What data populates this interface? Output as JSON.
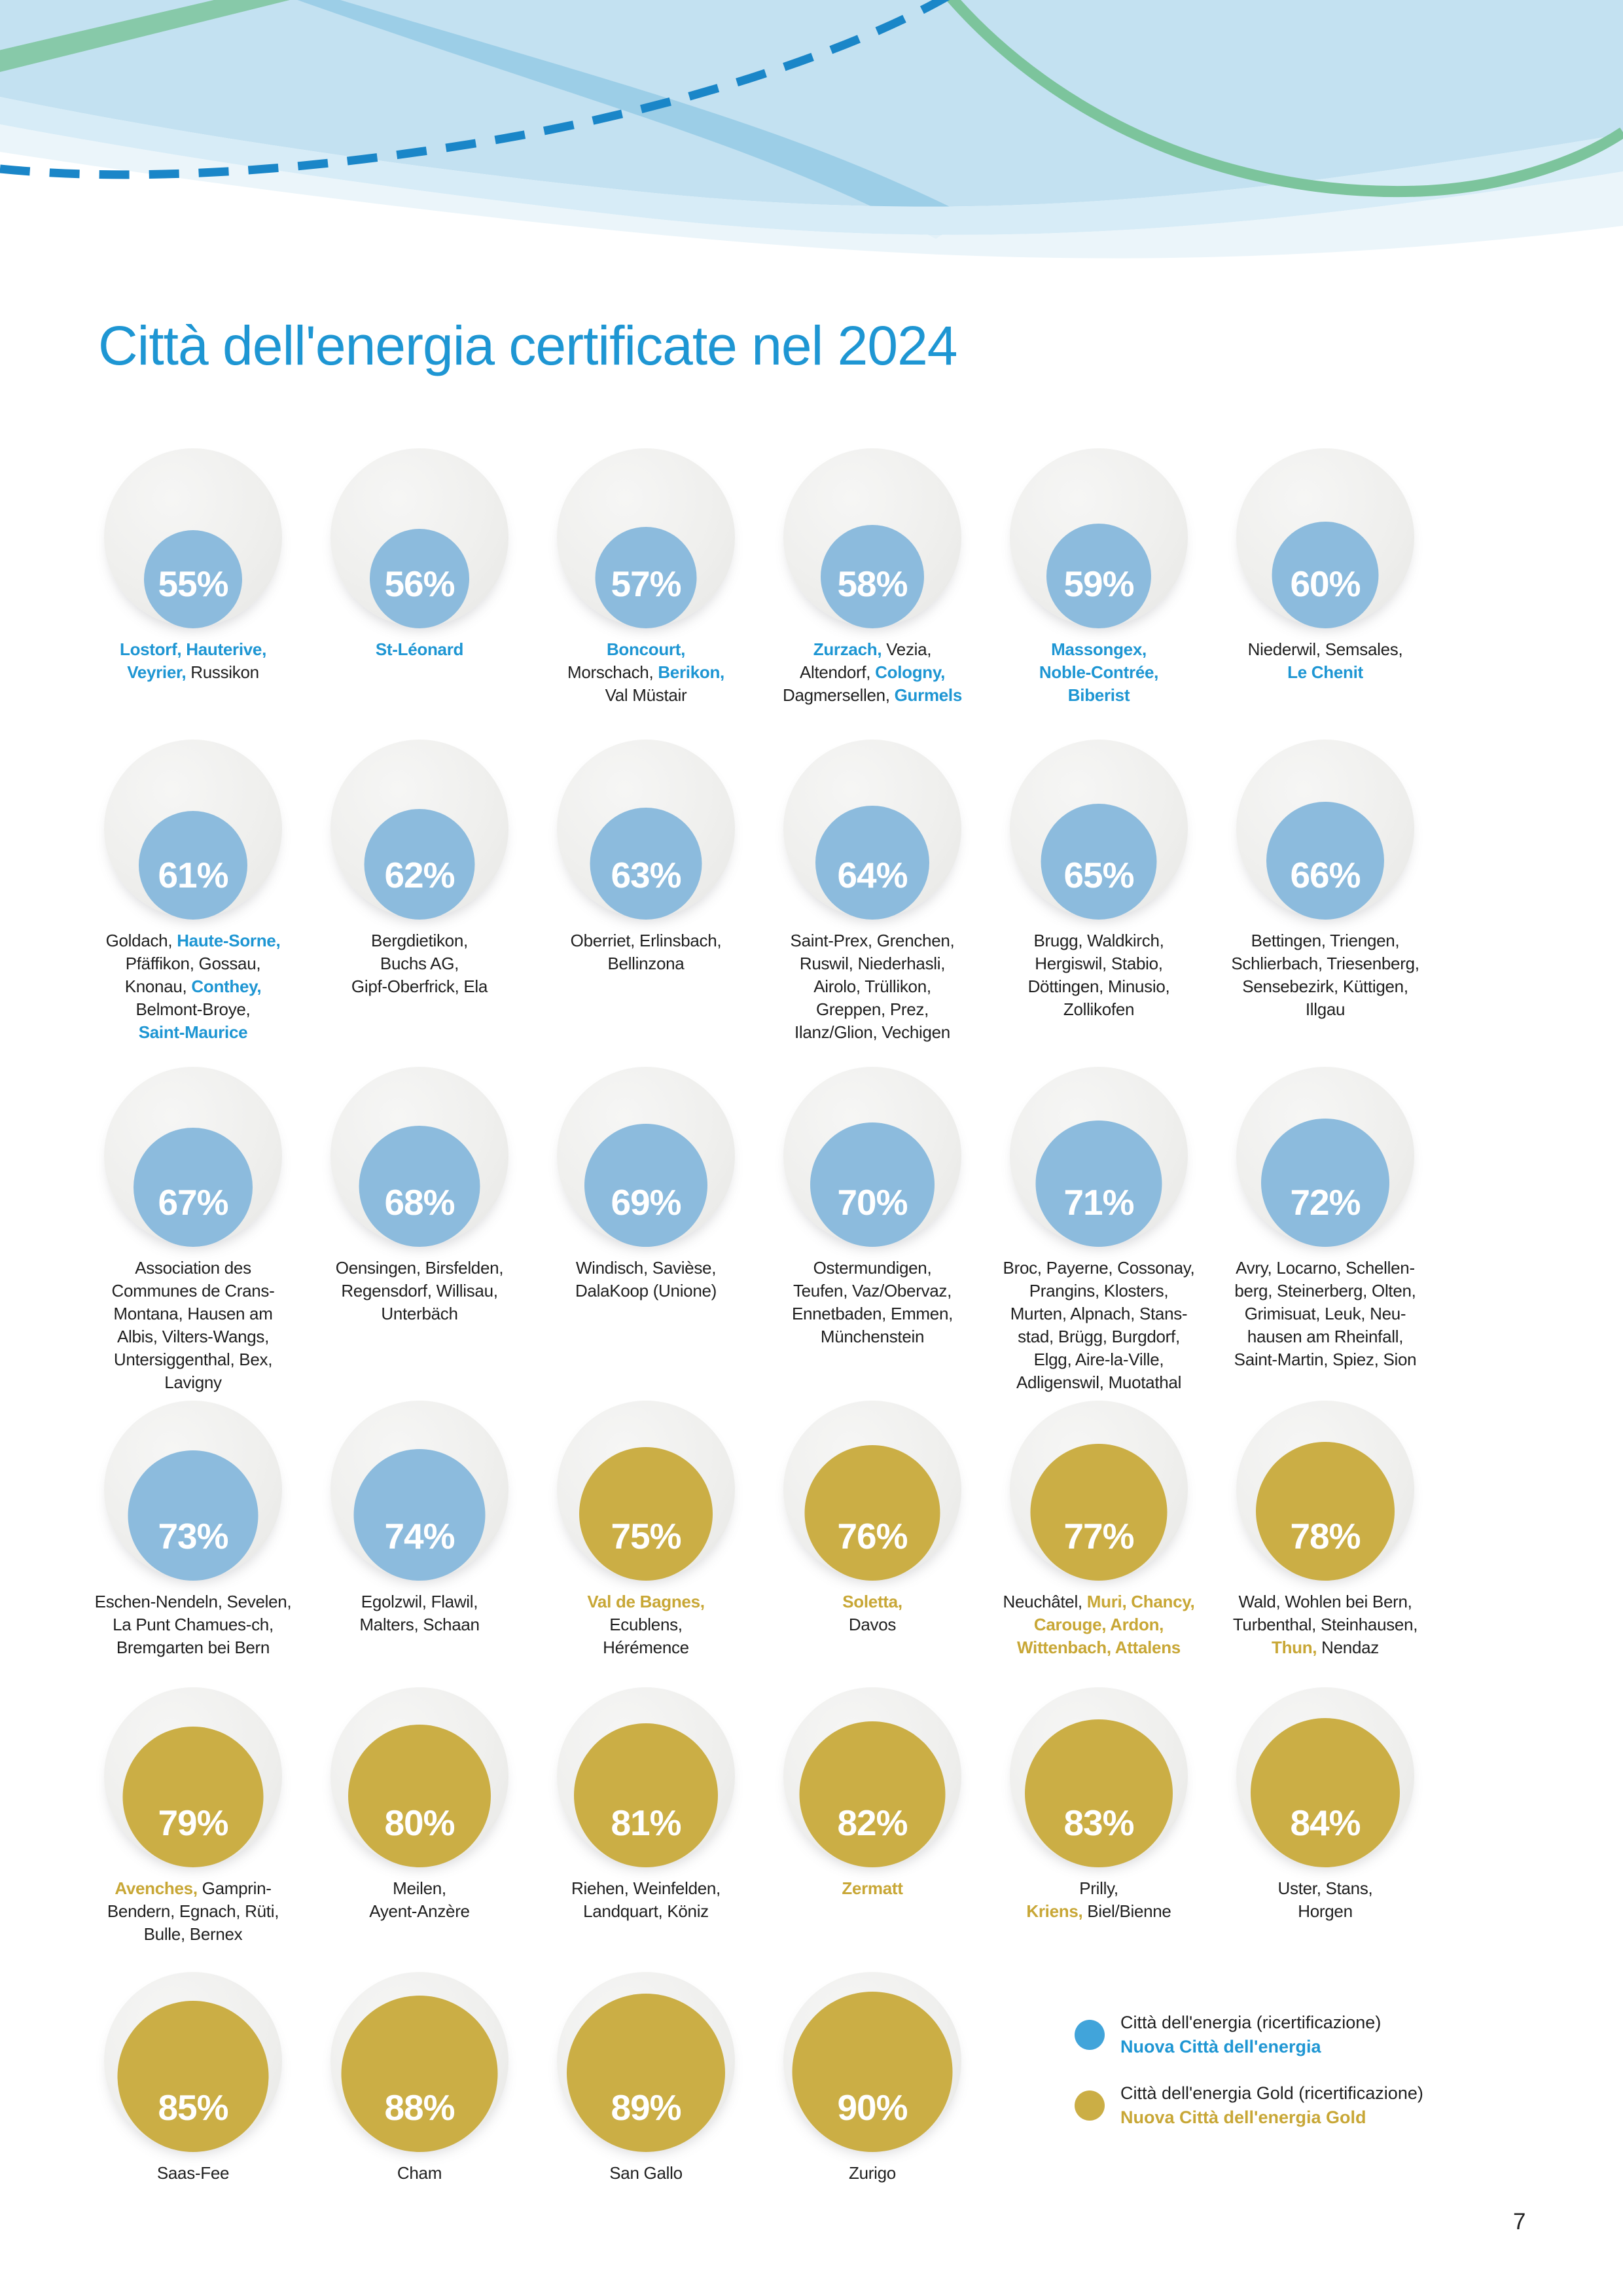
{
  "title": "Città dell'energia certificate nel 2024",
  "page_number": "7",
  "colors": {
    "blue_accent": "#1e96d3",
    "gold_accent": "#c8a736",
    "circle_blue": "#8cbbdd",
    "circle_gold": "#cbae45",
    "legend_blue_dot": "#41a4da",
    "header_light_blue": "#c3e1f1",
    "header_band_blue": "#95cae5",
    "header_green": "#7cc49c",
    "dashed_line_blue": "#1a86c8"
  },
  "legend": {
    "items": [
      {
        "dot": "blue",
        "line1": "Città dell'energia (ricertificazione)",
        "line2": "Nuova Città dell'energia"
      },
      {
        "dot": "gold",
        "line1": "Città dell'energia Gold (ricertificazione)",
        "line2": "Nuova Città dell'energia Gold"
      }
    ]
  },
  "rows": [
    {
      "items": [
        {
          "pct": 55,
          "color": "blue",
          "label": [
            [
              {
                "t": "Lostorf, Hauterive,",
                "c": "b"
              }
            ],
            [
              {
                "t": "Veyrier,",
                "c": "b"
              },
              {
                "t": " Russikon",
                "c": "k"
              }
            ]
          ]
        },
        {
          "pct": 56,
          "color": "blue",
          "label": [
            [
              {
                "t": "St-Léonard",
                "c": "b"
              }
            ]
          ]
        },
        {
          "pct": 57,
          "color": "blue",
          "label": [
            [
              {
                "t": "Boncourt,",
                "c": "b"
              }
            ],
            [
              {
                "t": "Morschach, ",
                "c": "k"
              },
              {
                "t": "Berikon,",
                "c": "b"
              }
            ],
            [
              {
                "t": "Val Müstair",
                "c": "k"
              }
            ]
          ]
        },
        {
          "pct": 58,
          "color": "blue",
          "label": [
            [
              {
                "t": "Zurzach,",
                "c": "b"
              },
              {
                "t": " Vezia,",
                "c": "k"
              }
            ],
            [
              {
                "t": "Altendorf, ",
                "c": "k"
              },
              {
                "t": "Cologny,",
                "c": "b"
              }
            ],
            [
              {
                "t": "Dagmersellen, ",
                "c": "k"
              },
              {
                "t": "Gurmels",
                "c": "b"
              }
            ]
          ]
        },
        {
          "pct": 59,
          "color": "blue",
          "label": [
            [
              {
                "t": "Massongex,",
                "c": "b"
              }
            ],
            [
              {
                "t": "Noble-Contrée,",
                "c": "b"
              }
            ],
            [
              {
                "t": "Biberist",
                "c": "b"
              }
            ]
          ]
        },
        {
          "pct": 60,
          "color": "blue",
          "label": [
            [
              {
                "t": "Niederwil, Semsales,",
                "c": "k"
              }
            ],
            [
              {
                "t": "Le Chenit",
                "c": "b"
              }
            ]
          ]
        }
      ]
    },
    {
      "items": [
        {
          "pct": 61,
          "color": "blue",
          "label": [
            [
              {
                "t": "Goldach, ",
                "c": "k"
              },
              {
                "t": "Haute-Sorne,",
                "c": "b"
              }
            ],
            [
              {
                "t": "Pfäffikon, Gossau,",
                "c": "k"
              }
            ],
            [
              {
                "t": "Knonau, ",
                "c": "k"
              },
              {
                "t": "Conthey,",
                "c": "b"
              }
            ],
            [
              {
                "t": "Belmont-Broye,",
                "c": "k"
              }
            ],
            [
              {
                "t": "Saint-Maurice",
                "c": "b"
              }
            ]
          ]
        },
        {
          "pct": 62,
          "color": "blue",
          "label": [
            [
              {
                "t": "Bergdietikon,",
                "c": "k"
              }
            ],
            [
              {
                "t": "Buchs AG,",
                "c": "k"
              }
            ],
            [
              {
                "t": "Gipf-Oberfrick, Ela",
                "c": "k"
              }
            ]
          ]
        },
        {
          "pct": 63,
          "color": "blue",
          "label": [
            [
              {
                "t": "Oberriet, Erlinsbach,",
                "c": "k"
              }
            ],
            [
              {
                "t": "Bellinzona",
                "c": "k"
              }
            ]
          ]
        },
        {
          "pct": 64,
          "color": "blue",
          "label": [
            [
              {
                "t": "Saint-Prex, Grenchen,",
                "c": "k"
              }
            ],
            [
              {
                "t": "Ruswil, Niederhasli,",
                "c": "k"
              }
            ],
            [
              {
                "t": "Airolo, Trüllikon,",
                "c": "k"
              }
            ],
            [
              {
                "t": "Greppen, Prez,",
                "c": "k"
              }
            ],
            [
              {
                "t": "Ilanz/Glion, Vechigen",
                "c": "k"
              }
            ]
          ]
        },
        {
          "pct": 65,
          "color": "blue",
          "label": [
            [
              {
                "t": "Brugg, Waldkirch,",
                "c": "k"
              }
            ],
            [
              {
                "t": "Hergiswil, Stabio,",
                "c": "k"
              }
            ],
            [
              {
                "t": "Döttingen, Minusio,",
                "c": "k"
              }
            ],
            [
              {
                "t": "Zollikofen",
                "c": "k"
              }
            ]
          ]
        },
        {
          "pct": 66,
          "color": "blue",
          "label": [
            [
              {
                "t": "Bettingen, Triengen,",
                "c": "k"
              }
            ],
            [
              {
                "t": "Schlierbach, Triesenberg,",
                "c": "k"
              }
            ],
            [
              {
                "t": "Sensebezirk, Küttigen,",
                "c": "k"
              }
            ],
            [
              {
                "t": "Illgau",
                "c": "k"
              }
            ]
          ]
        }
      ]
    },
    {
      "items": [
        {
          "pct": 67,
          "color": "blue",
          "label": [
            [
              {
                "t": "Association des",
                "c": "k"
              }
            ],
            [
              {
                "t": "Communes de Crans-",
                "c": "k"
              }
            ],
            [
              {
                "t": "Montana, Hausen am",
                "c": "k"
              }
            ],
            [
              {
                "t": "Albis, Vilters-Wangs,",
                "c": "k"
              }
            ],
            [
              {
                "t": "Untersiggenthal, Bex,",
                "c": "k"
              }
            ],
            [
              {
                "t": "Lavigny",
                "c": "k"
              }
            ]
          ]
        },
        {
          "pct": 68,
          "color": "blue",
          "label": [
            [
              {
                "t": "Oensingen, Birsfelden,",
                "c": "k"
              }
            ],
            [
              {
                "t": "Regensdorf, Willisau,",
                "c": "k"
              }
            ],
            [
              {
                "t": "Unterbäch",
                "c": "k"
              }
            ]
          ]
        },
        {
          "pct": 69,
          "color": "blue",
          "label": [
            [
              {
                "t": "Windisch, Savièse,",
                "c": "k"
              }
            ],
            [
              {
                "t": "DalaKoop (Unione)",
                "c": "k"
              }
            ]
          ]
        },
        {
          "pct": 70,
          "color": "blue",
          "label": [
            [
              {
                "t": "Ostermundigen,",
                "c": "k"
              }
            ],
            [
              {
                "t": "Teufen, Vaz/Obervaz,",
                "c": "k"
              }
            ],
            [
              {
                "t": "Ennetbaden, Emmen,",
                "c": "k"
              }
            ],
            [
              {
                "t": "Münchenstein",
                "c": "k"
              }
            ]
          ]
        },
        {
          "pct": 71,
          "color": "blue",
          "label": [
            [
              {
                "t": "Broc, Payerne, Cossonay,",
                "c": "k"
              }
            ],
            [
              {
                "t": "Prangins, Klosters,",
                "c": "k"
              }
            ],
            [
              {
                "t": "Murten, Alpnach, Stans-",
                "c": "k"
              }
            ],
            [
              {
                "t": "stad, Brügg, Burgdorf,",
                "c": "k"
              }
            ],
            [
              {
                "t": "Elgg, Aire-la-Ville,",
                "c": "k"
              }
            ],
            [
              {
                "t": "Adligenswil, Muotathal",
                "c": "k"
              }
            ]
          ]
        },
        {
          "pct": 72,
          "color": "blue",
          "label": [
            [
              {
                "t": "Avry, Locarno, Schellen-",
                "c": "k"
              }
            ],
            [
              {
                "t": "berg, Steinerberg, Olten,",
                "c": "k"
              }
            ],
            [
              {
                "t": "Grimisuat, Leuk, Neu-",
                "c": "k"
              }
            ],
            [
              {
                "t": "hausen am Rheinfall,",
                "c": "k"
              }
            ],
            [
              {
                "t": "Saint-Martin, Spiez, Sion",
                "c": "k"
              }
            ]
          ]
        }
      ]
    },
    {
      "items": [
        {
          "pct": 73,
          "color": "blue",
          "label": [
            [
              {
                "t": "Eschen-Nendeln, Sevelen,",
                "c": "k"
              }
            ],
            [
              {
                "t": "La Punt Chamues-ch,",
                "c": "k"
              }
            ],
            [
              {
                "t": "Bremgarten bei Bern",
                "c": "k"
              }
            ]
          ]
        },
        {
          "pct": 74,
          "color": "blue",
          "label": [
            [
              {
                "t": "Egolzwil, Flawil,",
                "c": "k"
              }
            ],
            [
              {
                "t": "Malters, Schaan",
                "c": "k"
              }
            ]
          ]
        },
        {
          "pct": 75,
          "color": "gold",
          "label": [
            [
              {
                "t": "Val de Bagnes,",
                "c": "g"
              }
            ],
            [
              {
                "t": "Ecublens,",
                "c": "k"
              }
            ],
            [
              {
                "t": "Hérémence",
                "c": "k"
              }
            ]
          ]
        },
        {
          "pct": 76,
          "color": "gold",
          "label": [
            [
              {
                "t": "Soletta,",
                "c": "g"
              }
            ],
            [
              {
                "t": "Davos",
                "c": "k"
              }
            ]
          ]
        },
        {
          "pct": 77,
          "color": "gold",
          "label": [
            [
              {
                "t": "Neuchâtel, ",
                "c": "k"
              },
              {
                "t": "Muri, Chancy,",
                "c": "g"
              }
            ],
            [
              {
                "t": "Carouge, Ardon,",
                "c": "g"
              }
            ],
            [
              {
                "t": "Wittenbach, Attalens",
                "c": "g"
              }
            ]
          ]
        },
        {
          "pct": 78,
          "color": "gold",
          "label": [
            [
              {
                "t": "Wald, Wohlen bei Bern,",
                "c": "k"
              }
            ],
            [
              {
                "t": "Turbenthal, Steinhausen,",
                "c": "k"
              }
            ],
            [
              {
                "t": "Thun,",
                "c": "g"
              },
              {
                "t": " Nendaz",
                "c": "k"
              }
            ]
          ]
        }
      ]
    },
    {
      "items": [
        {
          "pct": 79,
          "color": "gold",
          "label": [
            [
              {
                "t": "Avenches,",
                "c": "g"
              },
              {
                "t": " Gamprin-",
                "c": "k"
              }
            ],
            [
              {
                "t": "Bendern, Egnach, Rüti,",
                "c": "k"
              }
            ],
            [
              {
                "t": "Bulle, Bernex",
                "c": "k"
              }
            ]
          ]
        },
        {
          "pct": 80,
          "color": "gold",
          "label": [
            [
              {
                "t": "Meilen,",
                "c": "k"
              }
            ],
            [
              {
                "t": "Ayent-Anzère",
                "c": "k"
              }
            ]
          ]
        },
        {
          "pct": 81,
          "color": "gold",
          "label": [
            [
              {
                "t": "Riehen, Weinfelden,",
                "c": "k"
              }
            ],
            [
              {
                "t": "Landquart, Köniz",
                "c": "k"
              }
            ]
          ]
        },
        {
          "pct": 82,
          "color": "gold",
          "label": [
            [
              {
                "t": "Zermatt",
                "c": "g"
              }
            ]
          ]
        },
        {
          "pct": 83,
          "color": "gold",
          "label": [
            [
              {
                "t": "Prilly,",
                "c": "k"
              }
            ],
            [
              {
                "t": "Kriens,",
                "c": "g"
              },
              {
                "t": " Biel/Bienne",
                "c": "k"
              }
            ]
          ]
        },
        {
          "pct": 84,
          "color": "gold",
          "label": [
            [
              {
                "t": "Uster, Stans,",
                "c": "k"
              }
            ],
            [
              {
                "t": "Horgen",
                "c": "k"
              }
            ]
          ]
        }
      ]
    },
    {
      "items": [
        {
          "pct": 85,
          "color": "gold",
          "label": [
            [
              {
                "t": "Saas-Fee",
                "c": "k"
              }
            ]
          ]
        },
        {
          "pct": 88,
          "color": "gold",
          "label": [
            [
              {
                "t": "Cham",
                "c": "k"
              }
            ]
          ]
        },
        {
          "pct": 89,
          "color": "gold",
          "label": [
            [
              {
                "t": "San Gallo",
                "c": "k"
              }
            ]
          ]
        },
        {
          "pct": 90,
          "color": "gold",
          "label": [
            [
              {
                "t": "Zurigo",
                "c": "k"
              }
            ]
          ]
        }
      ]
    }
  ]
}
